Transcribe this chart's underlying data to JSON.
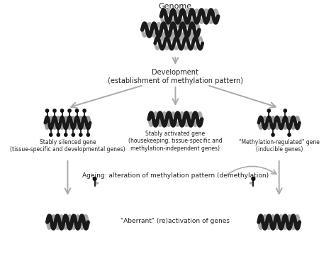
{
  "bg_color": "#ffffff",
  "arrow_color": "#aaaaaa",
  "text_color": "#222222",
  "title": "Genome",
  "dev_label": "Development\n(establishment of methylation pattern)",
  "left_label": "Stably silenced gene\n(tissue-specific and developmental genes)",
  "center_label": "Stably activated gene\n(housekeeping, tissue-specific and\nmethylation-independent genes)",
  "right_label": "\"Methylation-regulated\" gene\n(inducible genes)",
  "ageing_label": "Ageing: alteration of methylation pattern (demethylation)",
  "bottom_label": "\"Aberrant\" (re)activation of genes",
  "figsize": [
    4.74,
    3.65
  ],
  "dpi": 100
}
